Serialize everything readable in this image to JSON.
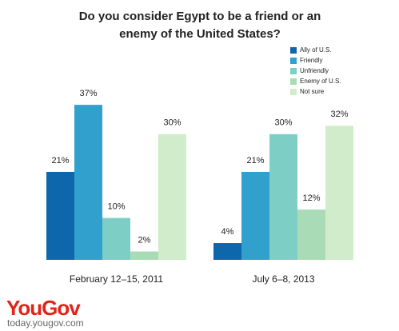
{
  "chart_data": {
    "type": "bar",
    "title": "Do you consider Egypt to be a friend or an enemy of the United States?",
    "categories": [
      "February 12–15, 2011",
      "July 6–8, 2013"
    ],
    "series": [
      {
        "name": "Ally of U.S.",
        "color": "#0f67ab",
        "values": [
          21,
          4
        ],
        "value_labels": [
          "21%",
          "4%"
        ]
      },
      {
        "name": "Friendly",
        "color": "#31a0cc",
        "values": [
          37,
          21
        ],
        "value_labels": [
          "37%",
          "21%"
        ]
      },
      {
        "name": "Unfriendly",
        "color": "#7dcfc6",
        "values": [
          10,
          30
        ],
        "value_labels": [
          "10%",
          "30%"
        ]
      },
      {
        "name": "Enemy of U.S.",
        "color": "#a9dcb6",
        "values": [
          2,
          12
        ],
        "value_labels": [
          "2%",
          "12%"
        ]
      },
      {
        "name": "Not sure",
        "color": "#d0ecca",
        "values": [
          30,
          32
        ],
        "value_labels": [
          "30%",
          "32%"
        ]
      }
    ],
    "legend": "top-right"
  },
  "footer": {
    "logo": "YouGov",
    "url": "today.yougov.com"
  }
}
